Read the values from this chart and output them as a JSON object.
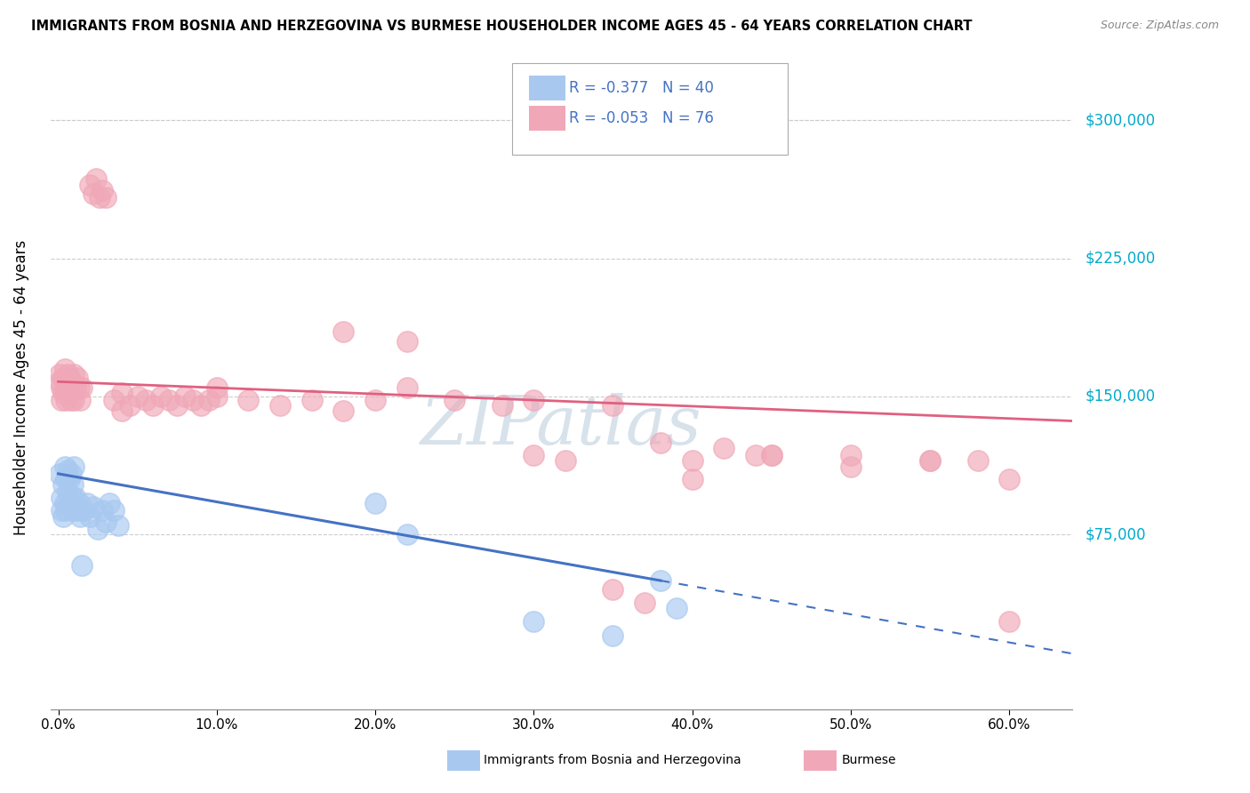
{
  "title": "IMMIGRANTS FROM BOSNIA AND HERZEGOVINA VS BURMESE HOUSEHOLDER INCOME AGES 45 - 64 YEARS CORRELATION CHART",
  "source": "Source: ZipAtlas.com",
  "ylabel": "Householder Income Ages 45 - 64 years",
  "xlabel_ticks": [
    "0.0%",
    "10.0%",
    "20.0%",
    "30.0%",
    "40.0%",
    "50.0%",
    "60.0%"
  ],
  "ytick_labels": [
    "$75,000",
    "$150,000",
    "$225,000",
    "$300,000"
  ],
  "ytick_values": [
    75000,
    150000,
    225000,
    300000
  ],
  "xlim": [
    -0.005,
    0.64
  ],
  "ylim": [
    -20000,
    330000
  ],
  "legend_bosnia_R": "-0.377",
  "legend_bosnia_N": "40",
  "legend_burmese_R": "-0.053",
  "legend_burmese_N": "76",
  "bosnia_color": "#a8c8f0",
  "burmese_color": "#f0a8b8",
  "bosnia_line_color": "#4472c4",
  "burmese_line_color": "#e06080",
  "watermark": "ZIPatlas",
  "bosnia_scatter": [
    [
      0.001,
      108000
    ],
    [
      0.002,
      95000
    ],
    [
      0.002,
      88000
    ],
    [
      0.003,
      102000
    ],
    [
      0.003,
      85000
    ],
    [
      0.004,
      112000
    ],
    [
      0.004,
      92000
    ],
    [
      0.005,
      105000
    ],
    [
      0.005,
      88000
    ],
    [
      0.006,
      98000
    ],
    [
      0.006,
      110000
    ],
    [
      0.007,
      93000
    ],
    [
      0.007,
      105000
    ],
    [
      0.008,
      90000
    ],
    [
      0.008,
      108000
    ],
    [
      0.009,
      95000
    ],
    [
      0.009,
      102000
    ],
    [
      0.01,
      88000
    ],
    [
      0.01,
      112000
    ],
    [
      0.011,
      95000
    ],
    [
      0.012,
      88000
    ],
    [
      0.013,
      92000
    ],
    [
      0.014,
      85000
    ],
    [
      0.015,
      58000
    ],
    [
      0.016,
      88000
    ],
    [
      0.018,
      92000
    ],
    [
      0.02,
      85000
    ],
    [
      0.022,
      90000
    ],
    [
      0.025,
      78000
    ],
    [
      0.028,
      88000
    ],
    [
      0.03,
      82000
    ],
    [
      0.032,
      92000
    ],
    [
      0.035,
      88000
    ],
    [
      0.038,
      80000
    ],
    [
      0.2,
      92000
    ],
    [
      0.22,
      75000
    ],
    [
      0.3,
      28000
    ],
    [
      0.35,
      20000
    ],
    [
      0.38,
      50000
    ],
    [
      0.39,
      35000
    ]
  ],
  "burmese_scatter": [
    [
      0.001,
      158000
    ],
    [
      0.001,
      162000
    ],
    [
      0.002,
      155000
    ],
    [
      0.002,
      148000
    ],
    [
      0.003,
      160000
    ],
    [
      0.003,
      152000
    ],
    [
      0.004,
      165000
    ],
    [
      0.004,
      158000
    ],
    [
      0.005,
      155000
    ],
    [
      0.005,
      148000
    ],
    [
      0.006,
      162000
    ],
    [
      0.006,
      155000
    ],
    [
      0.007,
      160000
    ],
    [
      0.007,
      152000
    ],
    [
      0.008,
      158000
    ],
    [
      0.008,
      148000
    ],
    [
      0.009,
      155000
    ],
    [
      0.01,
      162000
    ],
    [
      0.01,
      148000
    ],
    [
      0.011,
      155000
    ],
    [
      0.012,
      160000
    ],
    [
      0.013,
      155000
    ],
    [
      0.014,
      148000
    ],
    [
      0.015,
      155000
    ],
    [
      0.02,
      265000
    ],
    [
      0.022,
      260000
    ],
    [
      0.024,
      268000
    ],
    [
      0.026,
      258000
    ],
    [
      0.028,
      262000
    ],
    [
      0.03,
      258000
    ],
    [
      0.035,
      148000
    ],
    [
      0.04,
      152000
    ],
    [
      0.04,
      142000
    ],
    [
      0.045,
      145000
    ],
    [
      0.05,
      150000
    ],
    [
      0.055,
      148000
    ],
    [
      0.06,
      145000
    ],
    [
      0.065,
      150000
    ],
    [
      0.07,
      148000
    ],
    [
      0.075,
      145000
    ],
    [
      0.08,
      150000
    ],
    [
      0.085,
      148000
    ],
    [
      0.09,
      145000
    ],
    [
      0.095,
      148000
    ],
    [
      0.1,
      150000
    ],
    [
      0.1,
      155000
    ],
    [
      0.12,
      148000
    ],
    [
      0.14,
      145000
    ],
    [
      0.16,
      148000
    ],
    [
      0.18,
      142000
    ],
    [
      0.2,
      148000
    ],
    [
      0.18,
      185000
    ],
    [
      0.22,
      180000
    ],
    [
      0.22,
      155000
    ],
    [
      0.25,
      148000
    ],
    [
      0.28,
      145000
    ],
    [
      0.3,
      148000
    ],
    [
      0.35,
      145000
    ],
    [
      0.3,
      118000
    ],
    [
      0.32,
      115000
    ],
    [
      0.38,
      125000
    ],
    [
      0.4,
      115000
    ],
    [
      0.42,
      122000
    ],
    [
      0.44,
      118000
    ],
    [
      0.45,
      118000
    ],
    [
      0.5,
      112000
    ],
    [
      0.55,
      115000
    ],
    [
      0.58,
      115000
    ],
    [
      0.35,
      45000
    ],
    [
      0.37,
      38000
    ],
    [
      0.4,
      105000
    ],
    [
      0.45,
      118000
    ],
    [
      0.5,
      118000
    ],
    [
      0.55,
      115000
    ],
    [
      0.6,
      105000
    ],
    [
      0.6,
      28000
    ]
  ]
}
